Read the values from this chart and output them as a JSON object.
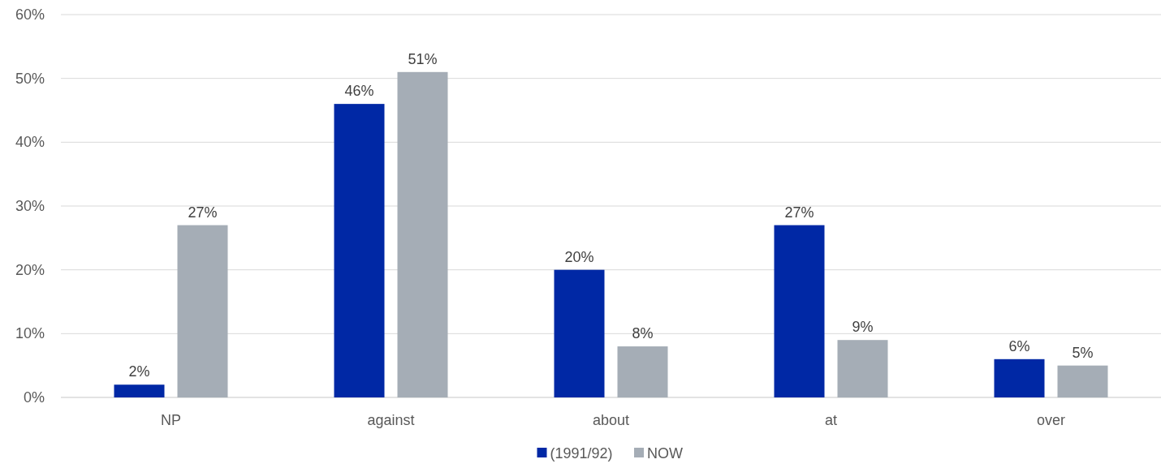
{
  "chart_data": {
    "type": "bar",
    "categories": [
      "NP",
      "against",
      "about",
      "at",
      "over"
    ],
    "series": [
      {
        "name": "(1991/92)",
        "color": "#0028a5",
        "values": [
          2,
          46,
          20,
          27,
          6
        ],
        "value_labels": [
          "2%",
          "46%",
          "20%",
          "27%",
          "6%"
        ]
      },
      {
        "name": "NOW",
        "color": "#a5adb6",
        "values": [
          27,
          51,
          8,
          9,
          5
        ],
        "value_labels": [
          "27%",
          "51%",
          "8%",
          "9%",
          "5%"
        ]
      }
    ],
    "ylim": [
      0,
      60
    ],
    "yticks": [
      {
        "value": 0,
        "label": "0%"
      },
      {
        "value": 10,
        "label": "10%"
      },
      {
        "value": 20,
        "label": "20%"
      },
      {
        "value": 30,
        "label": "30%"
      },
      {
        "value": 40,
        "label": "40%"
      },
      {
        "value": 50,
        "label": "50%"
      },
      {
        "value": 60,
        "label": "60%"
      }
    ],
    "grid": "y",
    "legend": "bottom"
  }
}
